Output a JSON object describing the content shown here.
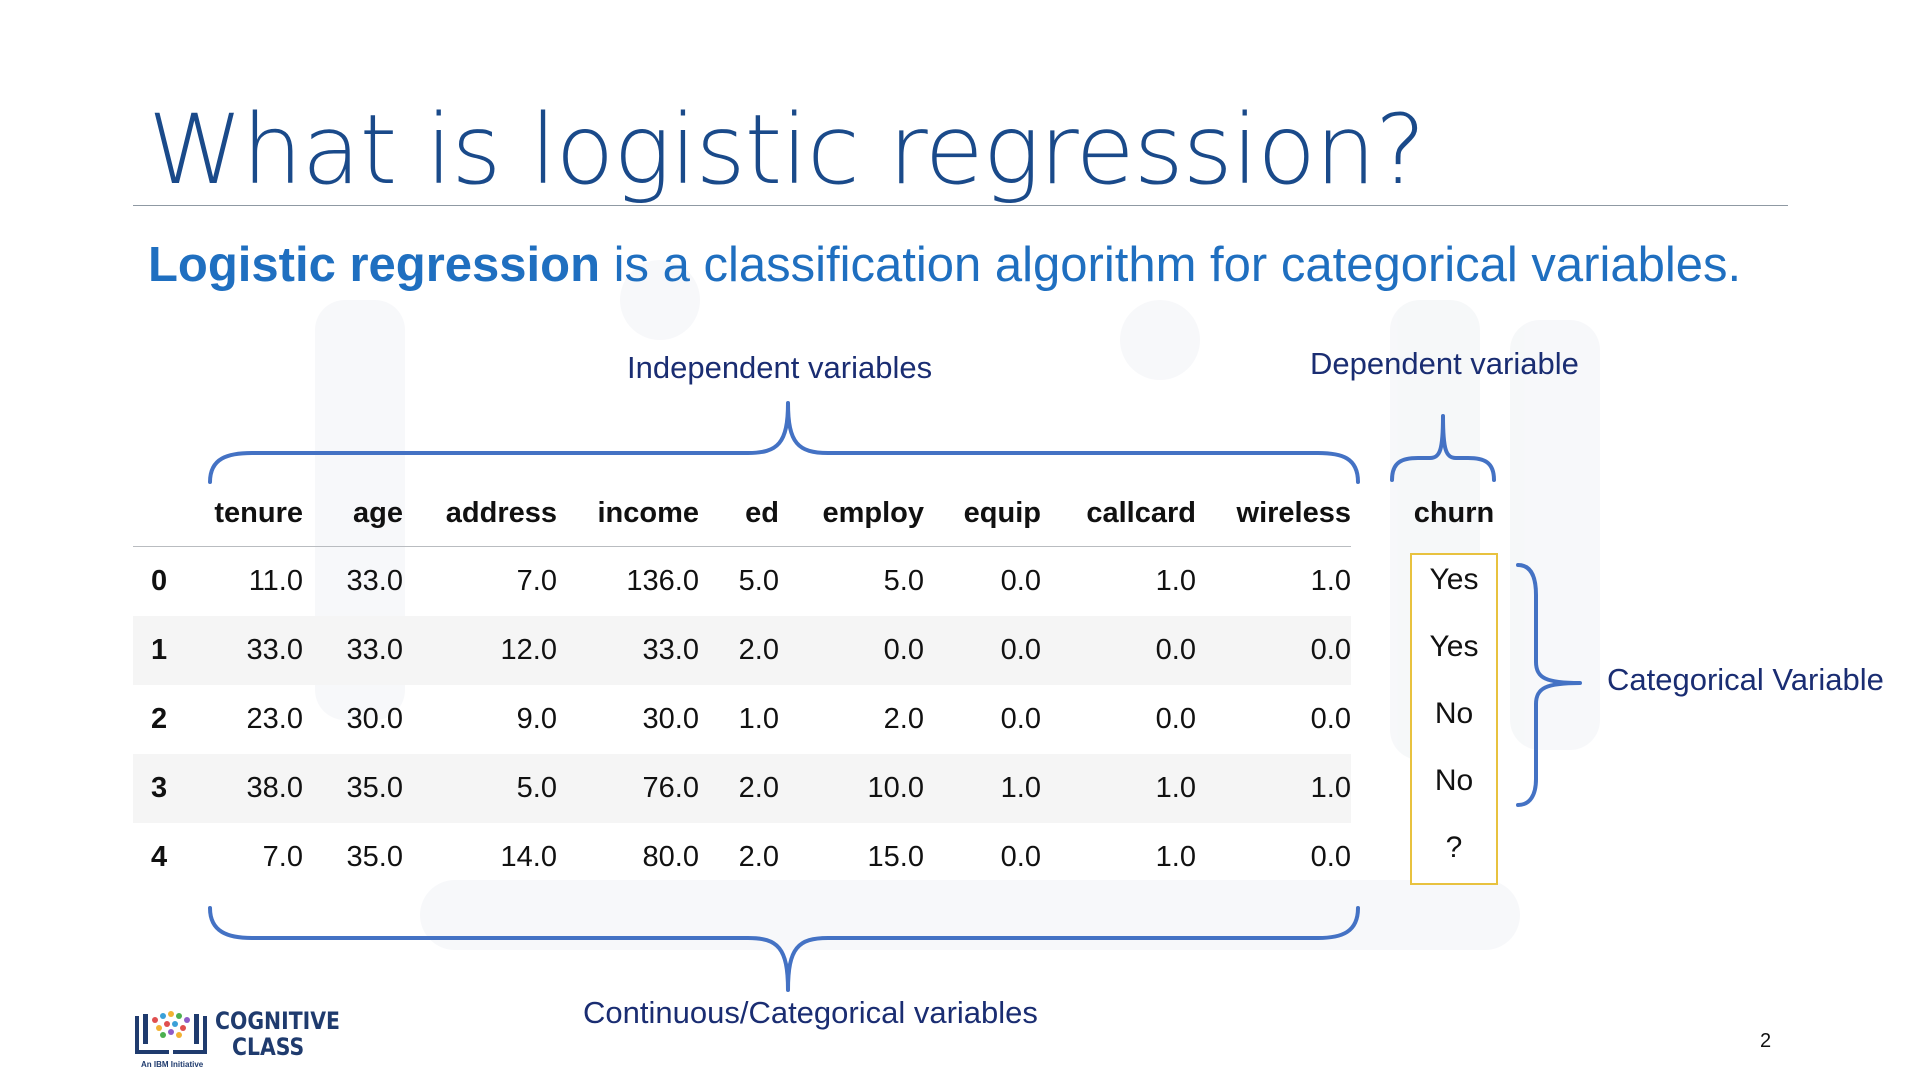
{
  "slide": {
    "title": "What is logistic regression?",
    "subtitle_bold": "Logistic regression",
    "subtitle_rest": " is a classification algorithm for categorical variables.",
    "page_number": "2"
  },
  "annotations": {
    "independent": "Independent variables",
    "dependent": "Dependent variable",
    "categorical": "Categorical Variable",
    "continuous": "Continuous/Categorical variables"
  },
  "table": {
    "columns": [
      "tenure",
      "age",
      "address",
      "income",
      "ed",
      "employ",
      "equip",
      "callcard",
      "wireless",
      "churn"
    ],
    "rows": [
      {
        "index": "0",
        "cells": [
          "11.0",
          "33.0",
          "7.0",
          "136.0",
          "5.0",
          "5.0",
          "0.0",
          "1.0",
          "1.0"
        ],
        "churn": "Yes"
      },
      {
        "index": "1",
        "cells": [
          "33.0",
          "33.0",
          "12.0",
          "33.0",
          "2.0",
          "0.0",
          "0.0",
          "0.0",
          "0.0"
        ],
        "churn": "Yes"
      },
      {
        "index": "2",
        "cells": [
          "23.0",
          "30.0",
          "9.0",
          "30.0",
          "1.0",
          "2.0",
          "0.0",
          "0.0",
          "0.0"
        ],
        "churn": "No"
      },
      {
        "index": "3",
        "cells": [
          "38.0",
          "35.0",
          "5.0",
          "76.0",
          "2.0",
          "10.0",
          "1.0",
          "1.0",
          "1.0"
        ],
        "churn": "No"
      },
      {
        "index": "4",
        "cells": [
          "7.0",
          "35.0",
          "14.0",
          "80.0",
          "2.0",
          "15.0",
          "0.0",
          "1.0",
          "0.0"
        ],
        "churn": "?"
      }
    ]
  },
  "logo": {
    "line1": "COGNITIVE",
    "line2": "CLASS",
    "tagline": "An IBM Initiative"
  },
  "colors": {
    "title": "#1a4a8a",
    "subtitle": "#1f6fc0",
    "brace": "#4472c4",
    "annotation": "#1a2d72",
    "highlight_box": "#e8c23f"
  }
}
